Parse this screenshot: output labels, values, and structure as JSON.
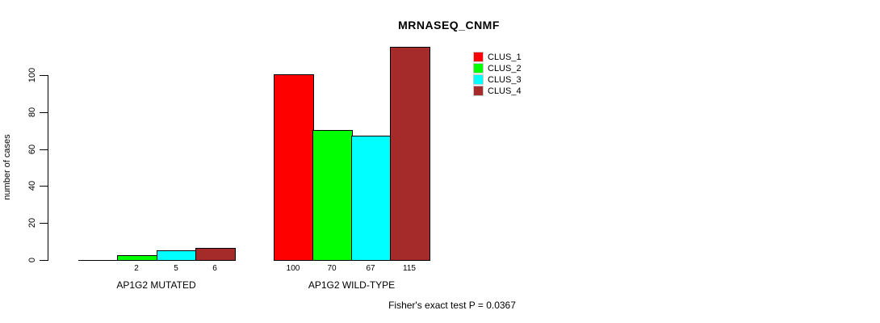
{
  "title": "MRNASEQ_CNMF",
  "ylabel": "number of cases",
  "footer": "Fisher's exact test P = 0.0367",
  "legend": {
    "position": "top-right-inside",
    "items": [
      {
        "label": "CLUS_1",
        "color": "#ff0000"
      },
      {
        "label": "CLUS_2",
        "color": "#00ff00"
      },
      {
        "label": "CLUS_3",
        "color": "#00ffff"
      },
      {
        "label": "CLUS_4",
        "color": "#a52a2a"
      }
    ]
  },
  "chart_data": {
    "type": "bar",
    "title": "MRNASEQ_CNMF",
    "xlabel": "",
    "ylabel": "number of cases",
    "annotation": "Fisher's exact test P = 0.0367",
    "grid": false,
    "legend_position": "top-right-inside",
    "ylim": [
      0,
      115
    ],
    "yticks": [
      0,
      20,
      40,
      60,
      80,
      100
    ],
    "series_names": [
      "CLUS_1",
      "CLUS_2",
      "CLUS_3",
      "CLUS_4"
    ],
    "series_colors": [
      "#ff0000",
      "#00ff00",
      "#00ffff",
      "#a52a2a"
    ],
    "groups": [
      {
        "label": "AP1G2 MUTATED",
        "values": [
          0,
          2,
          5,
          6
        ],
        "bar_labels": [
          "",
          "2",
          "5",
          "6"
        ]
      },
      {
        "label": "AP1G2 WILD-TYPE",
        "values": [
          100,
          70,
          67,
          115
        ],
        "bar_labels": [
          "100",
          "70",
          "67",
          "115"
        ]
      }
    ]
  }
}
